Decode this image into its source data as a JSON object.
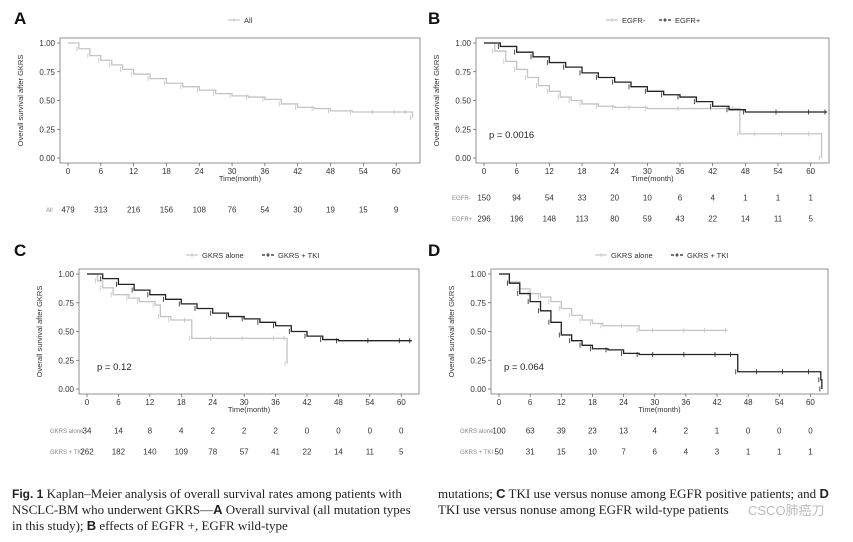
{
  "caption": {
    "fig_label": "Fig. 1",
    "left_text": "Kaplan–Meier analysis of overall survival rates among patients with NSCLC-BM who underwent GKRS—",
    "left_A": "A",
    "left_A_text": "Overall survival (all mutation types in this study);",
    "left_B": "B",
    "left_B_text": "effects of EGFR +, EGFR wild-type",
    "right_text1": "mutations;",
    "right_C": "C",
    "right_C_text": "TKI use versus nonuse among EGFR positive patients;",
    "right_and": "and",
    "right_D": "D",
    "right_D_text": "TKI use versus nonuse among EGFR wild-type patients"
  },
  "watermark": "CSCO肺癌刀",
  "colors": {
    "gray": "#c4c4c4",
    "dark": "#222222"
  },
  "chart_data": [
    {
      "panel": "A",
      "type": "line",
      "ylabel": "Overall survival after GKRS",
      "xlabel": "Time(month)",
      "xticks": [
        0,
        6,
        12,
        18,
        24,
        30,
        36,
        42,
        48,
        54,
        60
      ],
      "yticks": [
        "0.00",
        "0.25",
        "0.50",
        "0.75",
        "1.00"
      ],
      "xlim": [
        0,
        64
      ],
      "ylim": [
        0,
        1
      ],
      "legend": [
        "All"
      ],
      "series": [
        {
          "name": "All",
          "color": "gray",
          "x": [
            0,
            2,
            4,
            6,
            8,
            10,
            12,
            15,
            18,
            21,
            24,
            27,
            30,
            33,
            36,
            39,
            42,
            45,
            48,
            52,
            56,
            60,
            62,
            63
          ],
          "y": [
            1.0,
            0.95,
            0.89,
            0.85,
            0.81,
            0.77,
            0.73,
            0.69,
            0.65,
            0.62,
            0.59,
            0.56,
            0.54,
            0.53,
            0.51,
            0.47,
            0.44,
            0.43,
            0.41,
            0.4,
            0.4,
            0.4,
            0.4,
            0.35
          ]
        }
      ],
      "risk_table": [
        {
          "name": "All",
          "values": [
            "479",
            "313",
            "216",
            "156",
            "108",
            "76",
            "54",
            "30",
            "19",
            "15",
            "9"
          ]
        }
      ]
    },
    {
      "panel": "B",
      "type": "line",
      "ylabel": "Overall survival after GKRS",
      "xlabel": "Time(month)",
      "xticks": [
        0,
        6,
        12,
        18,
        24,
        30,
        36,
        42,
        48,
        54,
        60
      ],
      "yticks": [
        "0.00",
        "0.25",
        "0.50",
        "0.75",
        "1.00"
      ],
      "xlim": [
        0,
        63
      ],
      "ylim": [
        0,
        1
      ],
      "legend": [
        "EGFR-",
        "EGFR+"
      ],
      "pvalue": "p = 0.0016",
      "series": [
        {
          "name": "EGFR-",
          "color": "gray",
          "x": [
            0,
            2,
            4,
            6,
            8,
            10,
            12,
            14,
            16,
            18,
            21,
            24,
            27,
            30,
            36,
            42,
            46,
            47,
            50,
            55,
            60,
            62
          ],
          "y": [
            1.0,
            0.93,
            0.84,
            0.77,
            0.7,
            0.63,
            0.58,
            0.53,
            0.5,
            0.47,
            0.45,
            0.44,
            0.44,
            0.43,
            0.43,
            0.43,
            0.43,
            0.21,
            0.21,
            0.21,
            0.21,
            0.0
          ]
        },
        {
          "name": "EGFR+",
          "color": "dark",
          "x": [
            0,
            3,
            6,
            9,
            12,
            15,
            18,
            21,
            24,
            27,
            30,
            33,
            36,
            39,
            42,
            45,
            48,
            54,
            60,
            63
          ],
          "y": [
            1.0,
            0.97,
            0.92,
            0.88,
            0.83,
            0.79,
            0.74,
            0.7,
            0.66,
            0.62,
            0.58,
            0.55,
            0.53,
            0.49,
            0.45,
            0.42,
            0.4,
            0.4,
            0.4,
            0.4
          ]
        }
      ],
      "risk_table": [
        {
          "name": "EGFR-",
          "values": [
            "150",
            "94",
            "54",
            "33",
            "20",
            "10",
            "6",
            "4",
            "1",
            "1",
            "1"
          ]
        },
        {
          "name": "EGFR+",
          "values": [
            "296",
            "196",
            "148",
            "113",
            "80",
            "59",
            "43",
            "22",
            "14",
            "11",
            "5"
          ]
        }
      ]
    },
    {
      "panel": "C",
      "type": "line",
      "ylabel": "Overall survival after GKRS",
      "xlabel": "Time(month)",
      "xticks": [
        0,
        6,
        12,
        18,
        24,
        30,
        36,
        42,
        48,
        54,
        60
      ],
      "yticks": [
        "0.00",
        "0.25",
        "0.50",
        "0.75",
        "1.00"
      ],
      "xlim": [
        0,
        63
      ],
      "ylim": [
        0,
        1
      ],
      "legend": [
        "GKRS alone",
        "GKRS + TKI"
      ],
      "pvalue": "p = 0.12",
      "series": [
        {
          "name": "GKRS alone",
          "color": "gray",
          "x": [
            0,
            2,
            3,
            5,
            8,
            10,
            13,
            14,
            16,
            19,
            20,
            24,
            30,
            36,
            38,
            38.2
          ],
          "y": [
            1.0,
            0.94,
            0.88,
            0.82,
            0.79,
            0.76,
            0.73,
            0.63,
            0.6,
            0.6,
            0.44,
            0.44,
            0.44,
            0.44,
            0.44,
            0.22
          ]
        },
        {
          "name": "GKRS + TKI",
          "color": "dark",
          "x": [
            0,
            3,
            6,
            9,
            12,
            15,
            18,
            21,
            24,
            27,
            30,
            33,
            36,
            39,
            42,
            45,
            48,
            54,
            60,
            62
          ],
          "y": [
            1.0,
            0.96,
            0.91,
            0.86,
            0.82,
            0.78,
            0.74,
            0.7,
            0.66,
            0.63,
            0.61,
            0.58,
            0.55,
            0.5,
            0.46,
            0.43,
            0.42,
            0.42,
            0.42,
            0.42
          ]
        }
      ],
      "risk_table": [
        {
          "name": "GKRS alone",
          "values": [
            "34",
            "14",
            "8",
            "4",
            "2",
            "2",
            "2",
            "0",
            "0",
            "0",
            "0"
          ]
        },
        {
          "name": "GKRS + TKI",
          "values": [
            "262",
            "182",
            "140",
            "109",
            "78",
            "57",
            "41",
            "22",
            "14",
            "11",
            "5"
          ]
        }
      ]
    },
    {
      "panel": "D",
      "type": "line",
      "ylabel": "Overall survival after GKRS",
      "xlabel": "Time(month)",
      "xticks": [
        0,
        6,
        12,
        18,
        24,
        30,
        36,
        42,
        48,
        54,
        60
      ],
      "yticks": [
        "0.00",
        "0.25",
        "0.50",
        "0.75",
        "1.00"
      ],
      "xlim": [
        0,
        63
      ],
      "ylim": [
        0,
        1
      ],
      "legend": [
        "GKRS alone",
        "GKRS + TKI"
      ],
      "pvalue": "p = 0.064",
      "series": [
        {
          "name": "GKRS alone",
          "color": "gray",
          "x": [
            0,
            2,
            4,
            6,
            8,
            10,
            12,
            14,
            16,
            18,
            20,
            24,
            27,
            30,
            36,
            40,
            44
          ],
          "y": [
            1.0,
            0.93,
            0.87,
            0.83,
            0.8,
            0.76,
            0.7,
            0.64,
            0.6,
            0.57,
            0.55,
            0.55,
            0.51,
            0.51,
            0.51,
            0.51,
            0.51
          ]
        },
        {
          "name": "GKRS + TKI",
          "color": "dark",
          "x": [
            0,
            2,
            4,
            6,
            8,
            10,
            12,
            14,
            16,
            18,
            21,
            24,
            27,
            30,
            36,
            42,
            45,
            46,
            50,
            55,
            60,
            62,
            62.2
          ],
          "y": [
            1.0,
            0.92,
            0.83,
            0.76,
            0.68,
            0.58,
            0.47,
            0.42,
            0.38,
            0.35,
            0.34,
            0.31,
            0.3,
            0.3,
            0.3,
            0.3,
            0.3,
            0.15,
            0.15,
            0.15,
            0.15,
            0.08,
            0.0
          ]
        }
      ],
      "risk_table": [
        {
          "name": "GKRS alone",
          "values": [
            "100",
            "63",
            "39",
            "23",
            "13",
            "4",
            "2",
            "1",
            "0",
            "0",
            "0"
          ]
        },
        {
          "name": "GKRS + TKI",
          "values": [
            "50",
            "31",
            "15",
            "10",
            "7",
            "6",
            "4",
            "3",
            "1",
            "1",
            "1"
          ]
        }
      ]
    }
  ]
}
